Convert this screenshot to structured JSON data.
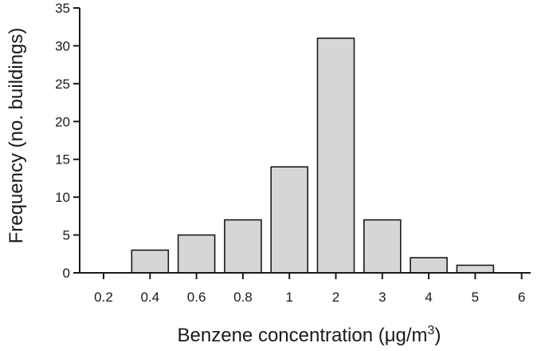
{
  "chart_data": {
    "type": "bar",
    "xlabel": "Benzene concentration (μg/m",
    "xlabel_sup": "3",
    "xlabel_end": ")",
    "ylabel": "Frequency (no. buildings)",
    "ylim": [
      0,
      35
    ],
    "yticks": [
      "0",
      "5",
      "10",
      "15",
      "20",
      "25",
      "30",
      "35"
    ],
    "xticks": [
      "0.2",
      "0.4",
      "0.6",
      "0.8",
      "1",
      "2",
      "3",
      "4",
      "5",
      "6"
    ],
    "categories": [
      "0.4",
      "0.6",
      "0.8",
      "1",
      "2",
      "3",
      "4",
      "5"
    ],
    "values": [
      3,
      5,
      7,
      14,
      31,
      7,
      2,
      1
    ],
    "grid": false,
    "legend": "none",
    "colors": {
      "bar_fill": "#d6d6d6",
      "bar_edge": "#1a1a1a",
      "axis": "#1a1a1a"
    }
  }
}
